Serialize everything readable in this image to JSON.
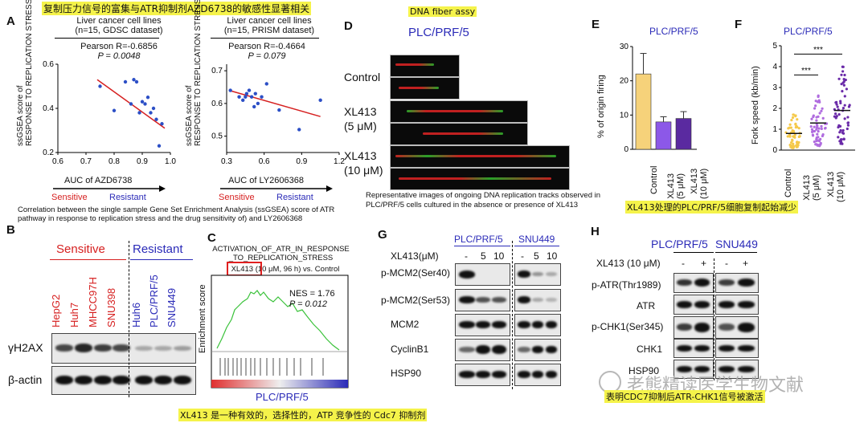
{
  "top_banner": "复制压力信号的富集与ATR抑制剂AZD6738的敏感性显著相关",
  "panel_labels": {
    "A": "A",
    "B": "B",
    "C": "C",
    "D": "D",
    "E": "E",
    "F": "F",
    "G": "G",
    "H": "H"
  },
  "panelA": {
    "ylabel1": "ssGSEA score of",
    "ylabel2": "RESPONSE TO REPLICATION STRESS",
    "caption": "Correlation between the single sample Gene Set Enrichment Analysis (ssGSEA) score of ATR pathway in response to replication stress and the drug sensitivity of) and LY2606368",
    "left": {
      "title1": "Liver cancer cell lines",
      "title2": "(n=15, GDSC dataset)",
      "stat1": "Pearson R=-0.6856",
      "stat2": "P = 0.0048",
      "xlabel": "AUC of AZD6738",
      "sensitive": "Sensitive",
      "resistant": "Resistant",
      "xticks": [
        "0.6",
        "0.7",
        "0.8",
        "0.9",
        "1.0"
      ],
      "yticks": [
        "0.2",
        "0.4",
        "0.6"
      ]
    },
    "right": {
      "title1": "Liver cancer cell lines",
      "title2": "(n=15, PRISM dataset)",
      "stat1": "Pearson R=-0.4664",
      "stat2": "P = 0.079",
      "xlabel": "AUC of LY2606368",
      "sensitive": "Sensitive",
      "resistant": "Resistant",
      "xticks": [
        "0.3",
        "0.6",
        "0.9",
        "1.2"
      ],
      "yticks": [
        "0.5",
        "0.6",
        "0.7"
      ]
    }
  },
  "chart_data": [
    {
      "type": "scatter",
      "title": "Liver cancer cell lines (n=15, GDSC dataset)",
      "xlabel": "AUC of AZD6738",
      "ylabel": "ssGSEA score of RESPONSE TO REPLICATION STRESS",
      "xlim": [
        0.6,
        1.0
      ],
      "ylim": [
        0.2,
        0.6
      ],
      "x": [
        0.75,
        0.8,
        0.84,
        0.86,
        0.87,
        0.88,
        0.89,
        0.9,
        0.91,
        0.92,
        0.93,
        0.94,
        0.95,
        0.96,
        0.97
      ],
      "y": [
        0.5,
        0.39,
        0.52,
        0.42,
        0.53,
        0.52,
        0.38,
        0.43,
        0.42,
        0.45,
        0.38,
        0.4,
        0.35,
        0.23,
        0.33
      ],
      "trend": [
        [
          0.74,
          0.53
        ],
        [
          0.98,
          0.31
        ]
      ]
    },
    {
      "type": "scatter",
      "title": "Liver cancer cell lines (n=15, PRISM dataset)",
      "xlabel": "AUC of LY2606368",
      "ylabel": "ssGSEA score of RESPONSE TO REPLICATION STRESS",
      "xlim": [
        0.3,
        1.2
      ],
      "ylim": [
        0.45,
        0.72
      ],
      "x": [
        0.33,
        0.4,
        0.43,
        0.45,
        0.46,
        0.48,
        0.5,
        0.52,
        0.53,
        0.55,
        0.58,
        0.62,
        0.72,
        0.88,
        1.05
      ],
      "y": [
        0.64,
        0.62,
        0.61,
        0.62,
        0.63,
        0.64,
        0.62,
        0.59,
        0.63,
        0.6,
        0.62,
        0.66,
        0.58,
        0.52,
        0.61
      ],
      "trend": [
        [
          0.32,
          0.64
        ],
        [
          1.05,
          0.56
        ]
      ]
    },
    {
      "type": "bar",
      "title": "PLC/PRF/5",
      "ylabel": "% of origin firing",
      "categories": [
        "Control",
        "XL413 (5 μM)",
        "XL413 (10 μM)"
      ],
      "values": [
        22,
        8,
        9
      ],
      "errors": [
        6,
        1.5,
        2
      ],
      "colors": [
        "#f6d27a",
        "#8c58e8",
        "#5a2aa0"
      ],
      "ylim": [
        0,
        30
      ],
      "yticks": [
        "0",
        "10",
        "20",
        "30"
      ]
    },
    {
      "type": "scatter",
      "title": "PLC/PRF/5",
      "ylabel": "Fork speed (kb/min)",
      "categories": [
        "Control",
        "XL413 (5 μM)",
        "XL413 (10 μM)"
      ],
      "medians": [
        0.8,
        1.3,
        1.9
      ],
      "spread": [
        [
          0.1,
          1.8
        ],
        [
          0.2,
          2.7
        ],
        [
          0.3,
          4.2
        ]
      ],
      "colors": [
        "#f5c94a",
        "#b06cdf",
        "#6a2aa8"
      ],
      "ylim": [
        0,
        5
      ],
      "yticks": [
        "0",
        "1",
        "2",
        "3",
        "4",
        "5"
      ],
      "significance": [
        "***",
        "***"
      ]
    }
  ],
  "panelB": {
    "sensitive": "Sensitive",
    "resistant": "Resistant",
    "lanes_sensitive": [
      "HepG2",
      "Huh7",
      "MHCC97H",
      "SNU398"
    ],
    "lanes_resistant": [
      "Huh6",
      "PLC/PRF/5",
      "SNU449"
    ],
    "rows": [
      "γH2AX",
      "β-actin"
    ]
  },
  "panelC": {
    "title1": "ACTIVATION_OF_ATR_IN_RESPONSE",
    "title2": "_TO_REPLICATION_STRESS",
    "condition": "XL413 (10 μM, 96 h) vs. Control",
    "ylabel": "Enrichment score",
    "nes": "NES = 1.76",
    "p": "P = 0.012",
    "xlabel": "PLC/PRF/5"
  },
  "panelD": {
    "tag": "DNA fiber assy",
    "title": "PLC/PRF/5",
    "row1": "Control",
    "row2a": "XL413",
    "row2b": "(5 μM)",
    "row3a": "XL413",
    "row3b": "(10 μM)",
    "caption": "Representative images of ongoing DNA replication tracks observed in PLC/PRF/5 cells cultured in the absence or presence of XL413"
  },
  "panelE": {
    "title": "PLC/PRF/5"
  },
  "panelF": {
    "title": "PLC/PRF/5"
  },
  "mid_note": "XL413处理的PLC/PRF/5细胞复制起始减少",
  "panelG": {
    "col1": "PLC/PRF/5",
    "col2": "SNU449",
    "treat": "XL413(μM)",
    "doses": [
      "-",
      "5",
      "10",
      "-",
      "5",
      "10"
    ],
    "rows": [
      "p-MCM2(Ser40)",
      "p-MCM2(Ser53)",
      "MCM2",
      "CyclinB1",
      "HSP90"
    ]
  },
  "panelH": {
    "col1": "PLC/PRF/5",
    "col2": "SNU449",
    "treat": "XL413 (10 μM)",
    "doses": [
      "-",
      "+",
      "-",
      "+"
    ],
    "rows": [
      "p-ATR(Thr1989)",
      "ATR",
      "p-CHK1(Ser345)",
      "CHK1",
      "HSP90"
    ]
  },
  "bottom_note_left": "XL413 是一种有效的，选择性的，ATP 竞争性的 Cdc7 抑制剂",
  "bottom_note_right": "表明CDC7抑制后ATR-CHK1信号被激活",
  "watermark": "老熊精读医学生物文献"
}
